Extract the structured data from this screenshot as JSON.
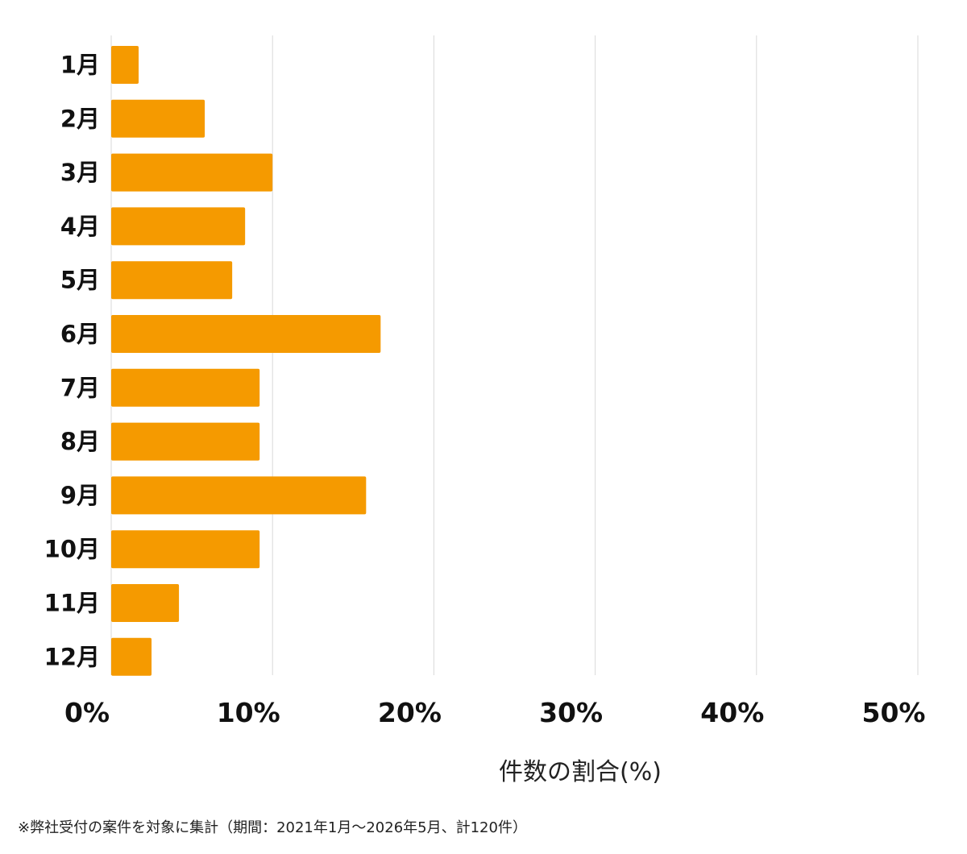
{
  "chart_data": {
    "type": "bar",
    "orientation": "horizontal",
    "categories": [
      "1月",
      "2月",
      "3月",
      "4月",
      "5月",
      "6月",
      "7月",
      "8月",
      "9月",
      "10月",
      "11月",
      "12月"
    ],
    "values": [
      1.7,
      5.8,
      10.0,
      8.3,
      7.5,
      16.7,
      9.2,
      9.2,
      15.8,
      9.2,
      4.2,
      2.5
    ],
    "xlabel": "件数の割合(%)",
    "ylabel": "",
    "xlim": [
      0,
      50
    ],
    "xticks": [
      "0%",
      "10%",
      "20%",
      "30%",
      "40%",
      "50%"
    ],
    "grid": true,
    "legend": "none",
    "bar_color": "#f59a00"
  },
  "footnote": "※弊社受付の案件を対象に集計（期間：2021年1月～2026年5月、計120件）"
}
